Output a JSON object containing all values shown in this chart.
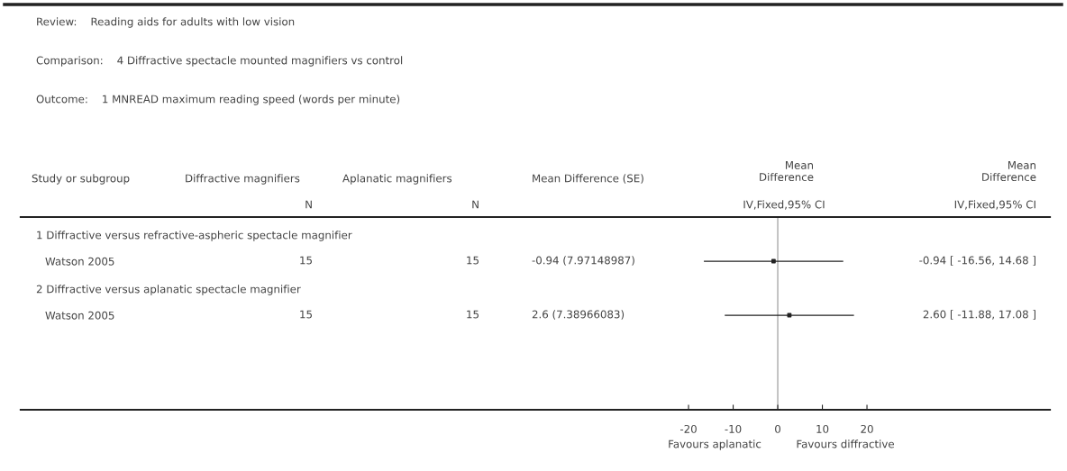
{
  "chart_data": {
    "type": "scatter",
    "orientation": "horizontal",
    "categories": [
      "Watson 2005",
      "Watson 2005"
    ],
    "values": [
      -0.94,
      2.6
    ],
    "errors": [
      [
        -16.56,
        14.68
      ],
      [
        -11.88,
        17.08
      ]
    ],
    "color": "#222222",
    "marker": "square",
    "xlim": [
      -169.7,
      61.0
    ],
    "xticks": [
      -20,
      -10,
      0,
      10,
      20
    ],
    "ref_lines": [
      {
        "axis": "x",
        "value": 0,
        "color": "#aaaaaa"
      }
    ],
    "annotations": [
      "Review:    Reading aids for adults with low vision",
      "Comparison:    4 Diffractive spectacle mounted magnifiers vs control",
      "Outcome:    1 MNREAD maximum reading speed (words per minute)",
      "Study or subgroup",
      "Diffractive magnifiers",
      "Aplanatic magnifiers",
      "Mean Difference (SE)",
      "Mean\nDifference",
      "Mean\nDifference",
      "N",
      "N",
      "IV,Fixed,95% CI",
      "IV,Fixed,95% CI",
      "1 Diffractive versus refractive-aspheric spectacle magnifier",
      "15",
      "15",
      "-0.94 (7.97148987)",
      "2 Diffractive versus aplanatic spectacle magnifier",
      "15",
      "15",
      "2.6 (7.38966083)",
      "Favours aplanatic",
      "Favours diffractive",
      "-0.94 [ -16.56, 14.68 ]",
      "2.60 [ -11.88, 17.08 ]"
    ]
  }
}
